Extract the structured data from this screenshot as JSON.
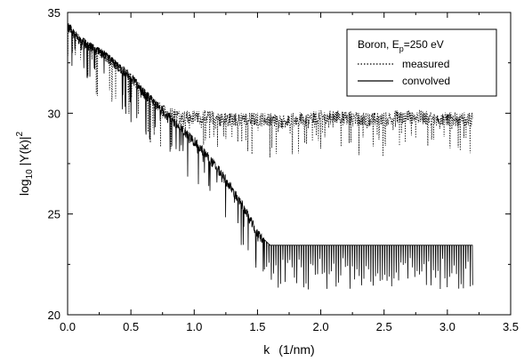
{
  "chart_data": {
    "type": "line",
    "title": "",
    "xlabel": {
      "main": "k",
      "unit": "(1/nm)"
    },
    "ylabel": {
      "prefix": "log",
      "sub": "10",
      "middle": " |Y(k)|",
      "sup": "2"
    },
    "xlim": [
      0,
      3.5
    ],
    "ylim": [
      20,
      35
    ],
    "xticks": [
      "0.0",
      "0.5",
      "1.0",
      "1.5",
      "2.0",
      "2.5",
      "3.0",
      "3.5"
    ],
    "xtick_values": [
      0,
      0.5,
      1.0,
      1.5,
      2.0,
      2.5,
      3.0,
      3.5
    ],
    "yticks": [
      "20",
      "25",
      "30",
      "35"
    ],
    "ytick_values": [
      20,
      25,
      30,
      35
    ],
    "legend": {
      "position": "top-right",
      "title_main": "Boron, E",
      "title_sub": "p",
      "title_rest": "=250 eV",
      "entries": [
        {
          "name": "measured",
          "style": "dotted"
        },
        {
          "name": "convolved",
          "style": "solid"
        }
      ]
    },
    "series": [
      {
        "name": "measured",
        "style": "dotted",
        "x": [
          0.0,
          0.1,
          0.2,
          0.3,
          0.4,
          0.5,
          0.6,
          0.7,
          0.8,
          0.9,
          1.0,
          1.1,
          1.2,
          1.3,
          1.4,
          1.5,
          1.6,
          1.7,
          1.8,
          1.9,
          2.0,
          2.1,
          2.2,
          2.3,
          2.4,
          2.5,
          2.6,
          2.7,
          2.8,
          2.9,
          3.0,
          3.1,
          3.2
        ],
        "y": [
          34.3,
          33.6,
          33.2,
          32.8,
          32.3,
          31.8,
          31.0,
          30.4,
          30.0,
          29.8,
          29.8,
          29.8,
          29.7,
          29.7,
          29.7,
          29.7,
          29.7,
          29.6,
          29.7,
          29.7,
          29.8,
          29.8,
          29.8,
          29.7,
          29.7,
          29.7,
          29.8,
          29.8,
          29.8,
          29.7,
          29.7,
          29.7,
          29.7
        ]
      },
      {
        "name": "convolved",
        "style": "solid",
        "x": [
          0.0,
          0.1,
          0.2,
          0.3,
          0.4,
          0.5,
          0.6,
          0.7,
          0.8,
          0.9,
          1.0,
          1.1,
          1.2,
          1.3,
          1.4,
          1.5,
          1.6,
          1.7,
          1.8,
          1.9,
          2.0,
          2.1,
          2.2,
          2.3,
          2.4,
          2.5,
          2.6,
          2.7,
          2.8,
          2.9,
          3.0,
          3.1,
          3.2
        ],
        "y": [
          34.3,
          33.6,
          33.2,
          32.8,
          32.3,
          31.8,
          31.0,
          30.4,
          29.8,
          29.2,
          28.6,
          27.9,
          27.1,
          26.2,
          25.2,
          24.0,
          23.4,
          23.4,
          23.4,
          23.4,
          23.4,
          23.4,
          23.4,
          23.4,
          23.4,
          23.4,
          23.4,
          23.4,
          23.4,
          23.4,
          23.4,
          23.4,
          23.4
        ]
      }
    ],
    "grid": false
  }
}
